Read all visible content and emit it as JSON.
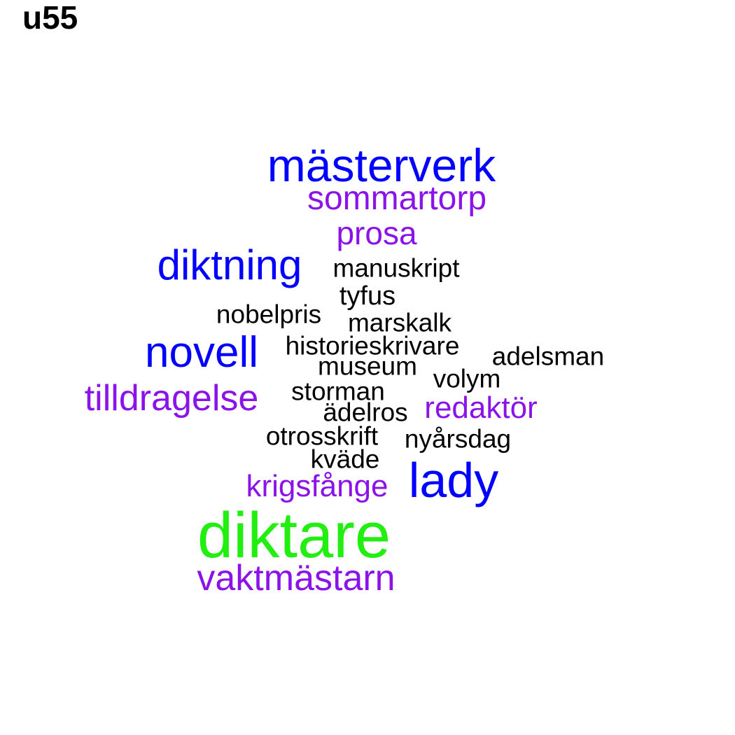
{
  "title": "u55",
  "colors": {
    "black": "#000000",
    "blue": "#0000ff",
    "purple": "#8b12e8",
    "green": "#22ee11"
  },
  "words": [
    {
      "text": "mästerverk",
      "color": "blue"
    },
    {
      "text": "sommartorp",
      "color": "purple"
    },
    {
      "text": "prosa",
      "color": "purple"
    },
    {
      "text": "diktning",
      "color": "blue"
    },
    {
      "text": "manuskript",
      "color": "black"
    },
    {
      "text": "tyfus",
      "color": "black"
    },
    {
      "text": "nobelpris",
      "color": "black"
    },
    {
      "text": "marskalk",
      "color": "black"
    },
    {
      "text": "novell",
      "color": "blue"
    },
    {
      "text": "historieskrivare",
      "color": "black"
    },
    {
      "text": "adelsman",
      "color": "black"
    },
    {
      "text": "museum",
      "color": "black"
    },
    {
      "text": "volym",
      "color": "black"
    },
    {
      "text": "tilldragelse",
      "color": "purple"
    },
    {
      "text": "storman",
      "color": "black"
    },
    {
      "text": "ädelros",
      "color": "black"
    },
    {
      "text": "redaktör",
      "color": "purple"
    },
    {
      "text": "otrosskrift",
      "color": "black"
    },
    {
      "text": "nyårsdag",
      "color": "black"
    },
    {
      "text": "kväde",
      "color": "black"
    },
    {
      "text": "lady",
      "color": "blue"
    },
    {
      "text": "krigsfånge",
      "color": "purple"
    },
    {
      "text": "diktare",
      "color": "green"
    },
    {
      "text": "vaktmästarn",
      "color": "purple"
    }
  ]
}
